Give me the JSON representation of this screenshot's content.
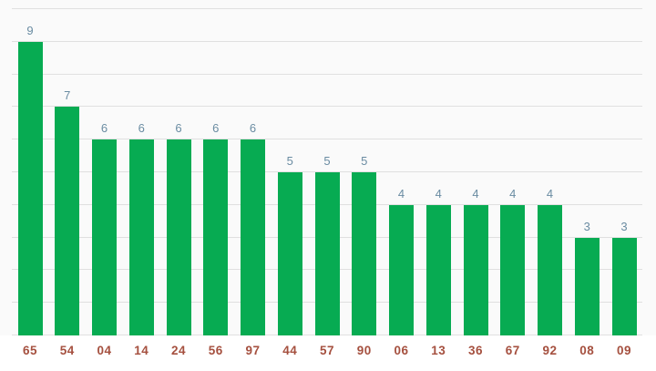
{
  "chart_data": {
    "type": "bar",
    "categories": [
      "65",
      "54",
      "04",
      "14",
      "24",
      "56",
      "97",
      "44",
      "57",
      "90",
      "06",
      "13",
      "36",
      "67",
      "92",
      "08",
      "09"
    ],
    "values": [
      9,
      7,
      6,
      6,
      6,
      6,
      6,
      5,
      5,
      5,
      4,
      4,
      4,
      4,
      4,
      3,
      3
    ],
    "title": "",
    "xlabel": "",
    "ylabel": "",
    "ylim": [
      0,
      10
    ],
    "grid": true,
    "grid_step": 1,
    "legend": "none",
    "value_labels_shown": true,
    "colors": {
      "bar": "#07ab52",
      "value_label": "#6a8ca2",
      "category_label": "#a5503f",
      "gridline": "#e0e0e0",
      "plot_background": "#fafafa",
      "page_background": "#ffffff"
    }
  }
}
